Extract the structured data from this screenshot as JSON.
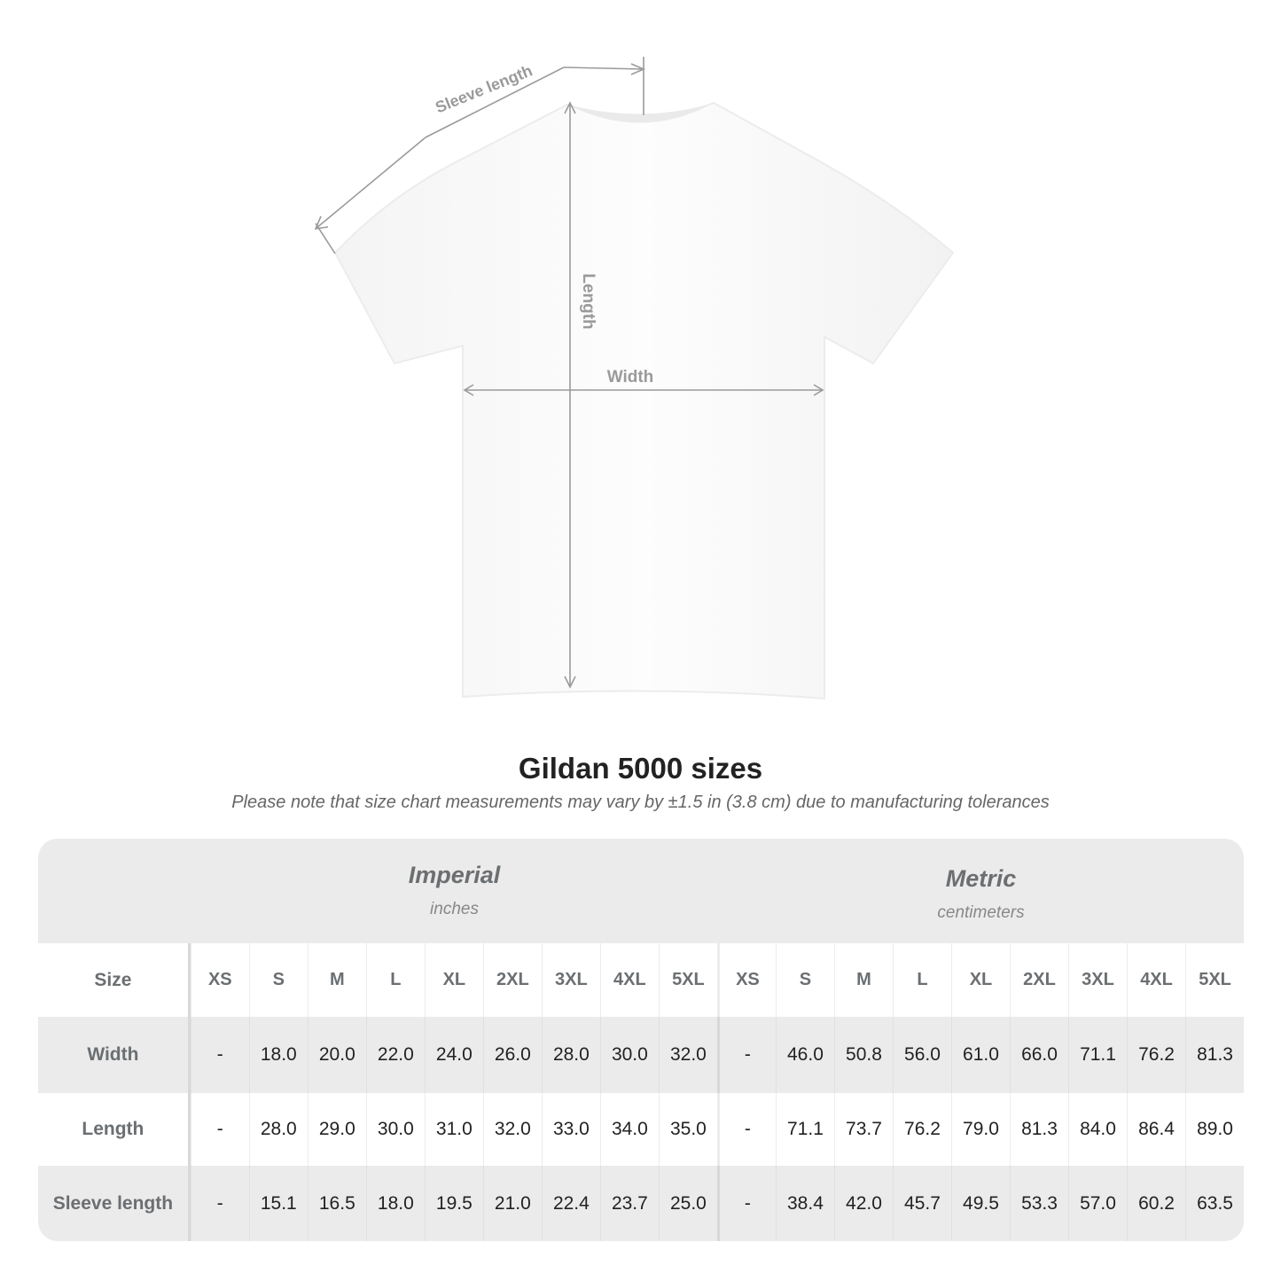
{
  "diagram": {
    "labels": {
      "sleeve": "Sleeve length",
      "length": "Length",
      "width": "Width"
    },
    "line_color": "#9a9a9a"
  },
  "title": "Gildan 5000 sizes",
  "note": "Please note that size chart measurements may vary by ±1.5 in (3.8 cm) due to manufacturing tolerances",
  "table": {
    "imperial": {
      "name": "Imperial",
      "unit": "inches"
    },
    "metric": {
      "name": "Metric",
      "unit": "centimeters"
    },
    "size_label": "Size",
    "sizes": [
      "XS",
      "S",
      "M",
      "L",
      "XL",
      "2XL",
      "3XL",
      "4XL",
      "5XL"
    ],
    "rows": [
      {
        "label": "Width",
        "imperial": [
          "-",
          "18.0",
          "20.0",
          "22.0",
          "24.0",
          "26.0",
          "28.0",
          "30.0",
          "32.0"
        ],
        "metric": [
          "-",
          "46.0",
          "50.8",
          "56.0",
          "61.0",
          "66.0",
          "71.1",
          "76.2",
          "81.3"
        ]
      },
      {
        "label": "Length",
        "imperial": [
          "-",
          "28.0",
          "29.0",
          "30.0",
          "31.0",
          "32.0",
          "33.0",
          "34.0",
          "35.0"
        ],
        "metric": [
          "-",
          "71.1",
          "73.7",
          "76.2",
          "79.0",
          "81.3",
          "84.0",
          "86.4",
          "89.0"
        ]
      },
      {
        "label": "Sleeve length",
        "imperial": [
          "-",
          "15.1",
          "16.5",
          "18.0",
          "19.5",
          "21.0",
          "22.4",
          "23.7",
          "25.0"
        ],
        "metric": [
          "-",
          "38.4",
          "42.0",
          "45.7",
          "49.5",
          "53.3",
          "57.0",
          "60.2",
          "63.5"
        ]
      }
    ],
    "colors": {
      "band": "#ebebeb",
      "label": "#6b6f72"
    }
  }
}
